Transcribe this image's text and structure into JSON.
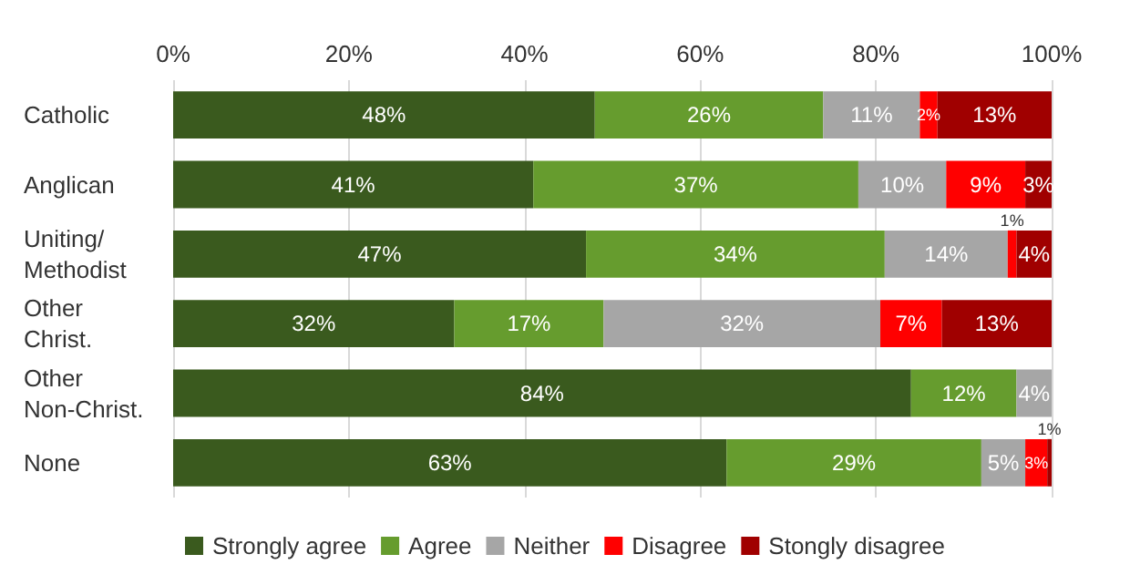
{
  "chart_data": {
    "type": "bar",
    "orientation": "horizontal",
    "stacked": true,
    "grid": "x",
    "legend": "bottom",
    "categories": [
      "Catholic",
      "Anglican",
      "Uniting/Methodist",
      "Other Christ.",
      "Other Non-Christ.",
      "None"
    ],
    "xlim": [
      0,
      100
    ],
    "xticks": [
      {
        "value": 0,
        "label": "0%"
      },
      {
        "value": 20,
        "label": "20%"
      },
      {
        "value": 40,
        "label": "40%"
      },
      {
        "value": 60,
        "label": "60%"
      },
      {
        "value": 80,
        "label": "80%"
      },
      {
        "value": 100,
        "label": "100%"
      }
    ],
    "series": [
      {
        "name": "Strongly agree",
        "color": "#3a5a1e",
        "values": [
          48,
          41,
          47,
          32,
          84,
          63
        ],
        "value_labels": [
          "48%",
          "41%",
          "47%",
          "32%",
          "84%",
          "63%"
        ]
      },
      {
        "name": "Agree",
        "color": "#669c2e",
        "values": [
          26,
          37,
          34,
          17,
          12,
          29
        ],
        "value_labels": [
          "26%",
          "37%",
          "34%",
          "17%",
          "12%",
          "29%"
        ]
      },
      {
        "name": "Neither",
        "color": "#a6a6a6",
        "values": [
          11,
          10,
          14,
          31.5,
          4,
          5
        ],
        "value_labels": [
          "11%",
          "10%",
          "14%",
          "32%",
          "4%",
          "5%"
        ]
      },
      {
        "name": "Disagree",
        "color": "#ff0000",
        "values": [
          2,
          9,
          1,
          7,
          null,
          2.5
        ],
        "value_labels": [
          "2%",
          "9%",
          "1%",
          "7%",
          null,
          "3%"
        ]
      },
      {
        "name": "Stongly disagree",
        "color": "#a00000",
        "values": [
          13,
          3,
          4,
          12.5,
          null,
          0.5
        ],
        "value_labels": [
          "13%",
          "3%",
          "4%",
          "13%",
          null,
          "1%"
        ]
      }
    ]
  }
}
